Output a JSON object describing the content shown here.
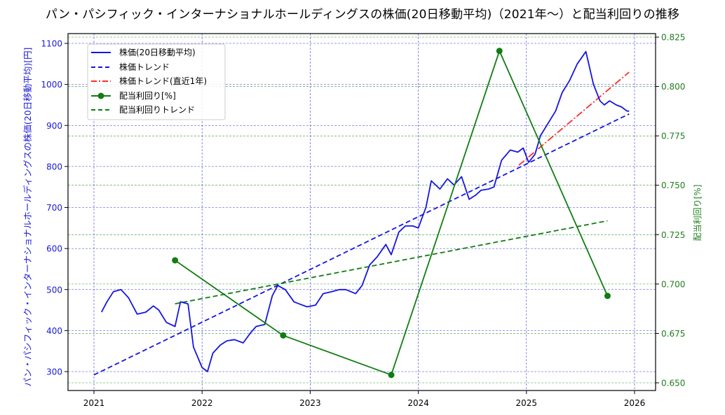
{
  "chart_data": {
    "type": "line",
    "title": "パン・パシフィック・インターナショナルホールディングスの株価(20日移動平均)（2021年〜）と配当利回りの推移",
    "xlabel": "",
    "ylabel": "パン・パシフィック・インターナショナルホールディングスの株価(20日移動平均)[円]",
    "ylabel_right": "配当利回り[%]",
    "x_ticks": [
      "2021",
      "2022",
      "2023",
      "2024",
      "2025",
      "2026"
    ],
    "y_ticks_left": [
      "300",
      "400",
      "500",
      "600",
      "700",
      "800",
      "900",
      "1000",
      "1100"
    ],
    "y_ticks_right": [
      "0.650",
      "0.675",
      "0.700",
      "0.725",
      "0.750",
      "0.775",
      "0.800",
      "0.825"
    ],
    "xlim": [
      2020.76,
      2026.19
    ],
    "ylim_left": [
      253,
      1122
    ],
    "ylim_right": [
      0.6485,
      0.8265
    ],
    "grid": true,
    "legend_position": "upper left",
    "legend": [
      "株価(20日移動平均)",
      "株価トレンド",
      "株価トレンド(直近1年)",
      "配当利回り[%]",
      "配当利回りトレンド"
    ],
    "series": [
      {
        "name": "株価(20日移動平均)",
        "axis": "left",
        "color": "#1515e0",
        "style": "solid",
        "x": [
          2021.07,
          2021.12,
          2021.18,
          2021.25,
          2021.32,
          2021.4,
          2021.48,
          2021.55,
          2021.6,
          2021.67,
          2021.75,
          2021.8,
          2021.87,
          2021.92,
          2022.0,
          2022.05,
          2022.1,
          2022.17,
          2022.23,
          2022.3,
          2022.38,
          2022.45,
          2022.5,
          2022.58,
          2022.65,
          2022.7,
          2022.77,
          2022.85,
          2022.9,
          2022.97,
          2023.05,
          2023.12,
          2023.2,
          2023.27,
          2023.33,
          2023.42,
          2023.48,
          2023.55,
          2023.62,
          2023.7,
          2023.75,
          2023.82,
          2023.88,
          2023.95,
          2024.0,
          2024.07,
          2024.12,
          2024.2,
          2024.27,
          2024.33,
          2024.4,
          2024.47,
          2024.53,
          2024.58,
          2024.65,
          2024.7,
          2024.77,
          2024.85,
          2024.92,
          2024.97,
          2025.02,
          2025.08,
          2025.13,
          2025.2,
          2025.27,
          2025.33,
          2025.4,
          2025.47,
          2025.55,
          2025.62,
          2025.68,
          2025.72,
          2025.77,
          2025.83,
          2025.88,
          2025.93,
          2025.95
        ],
        "values": [
          445,
          470,
          495,
          500,
          480,
          440,
          445,
          460,
          450,
          420,
          410,
          470,
          465,
          360,
          310,
          300,
          345,
          365,
          375,
          378,
          370,
          395,
          410,
          415,
          485,
          510,
          500,
          470,
          465,
          458,
          462,
          490,
          495,
          500,
          500,
          490,
          510,
          560,
          580,
          610,
          585,
          640,
          655,
          655,
          650,
          700,
          765,
          745,
          770,
          755,
          775,
          720,
          730,
          742,
          745,
          750,
          815,
          840,
          835,
          845,
          810,
          830,
          875,
          905,
          935,
          980,
          1010,
          1050,
          1080,
          1000,
          960,
          950,
          960,
          950,
          945,
          935,
          935
        ]
      },
      {
        "name": "株価トレンド",
        "axis": "left",
        "color": "#1515e0",
        "style": "dashed",
        "x": [
          2021.0,
          2025.95
        ],
        "values": [
          292,
          928
        ]
      },
      {
        "name": "株価トレンド(直近1年)",
        "axis": "left",
        "color": "#ff2a2a",
        "style": "dashdot",
        "x": [
          2024.93,
          2025.95
        ],
        "values": [
          803,
          1030
        ]
      },
      {
        "name": "配当利回り[%]",
        "axis": "right",
        "color": "#117d11",
        "style": "solid-marker",
        "x": [
          2021.75,
          2022.75,
          2023.75,
          2024.75,
          2025.75
        ],
        "values": [
          0.712,
          0.674,
          0.654,
          0.818,
          0.694
        ]
      },
      {
        "name": "配当利回りトレンド",
        "axis": "right",
        "color": "#117d11",
        "style": "dashed",
        "x": [
          2021.75,
          2025.75
        ],
        "values": [
          0.69,
          0.732
        ]
      }
    ],
    "gridlines_right_values": [
      0.65,
      0.675,
      0.7,
      0.725,
      0.75,
      0.775,
      0.8,
      0.825
    ]
  },
  "colors": {
    "left_axis": "#1a1ad6",
    "right_axis": "#1f7d1f",
    "price": "#1515e0",
    "price_trend_recent": "#ff2a2a",
    "dividend": "#117d11"
  }
}
